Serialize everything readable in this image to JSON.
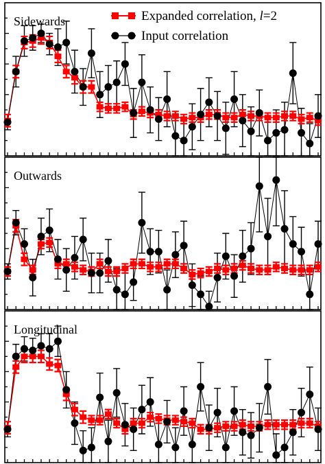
{
  "legend": {
    "expanded_label": "Expanded correlation, ",
    "expanded_l": "l",
    "expanded_eq": "=2",
    "input_label": "Input correlation"
  },
  "colors": {
    "expanded": "#ff0000",
    "input": "#000000"
  },
  "chart_data": [
    {
      "type": "line",
      "title": "Sidewards",
      "x": [
        1,
        2,
        3,
        4,
        5,
        6,
        7,
        8,
        9,
        10,
        11,
        12,
        13,
        14,
        15,
        16,
        17,
        18,
        19,
        20,
        21,
        22,
        23,
        24,
        25,
        26,
        27,
        28,
        29,
        30,
        31,
        32,
        33,
        34,
        35,
        36,
        37,
        38
      ],
      "ylim": [
        0,
        1
      ],
      "series": [
        {
          "name": "Expanded correlation, l=2",
          "values": [
            0.23,
            0.55,
            0.74,
            0.75,
            0.77,
            0.74,
            0.65,
            0.55,
            0.51,
            0.45,
            0.45,
            0.32,
            0.31,
            0.31,
            0.32,
            0.27,
            0.29,
            0.28,
            0.27,
            0.26,
            0.26,
            0.24,
            0.25,
            0.25,
            0.27,
            0.27,
            0.25,
            0.25,
            0.27,
            0.26,
            0.26,
            0.25,
            0.25,
            0.26,
            0.26,
            0.24,
            0.25,
            0.23
          ],
          "errors": [
            0.04,
            0.04,
            0.04,
            0.04,
            0.04,
            0.04,
            0.04,
            0.04,
            0.04,
            0.04,
            0.04,
            0.03,
            0.03,
            0.03,
            0.03,
            0.03,
            0.03,
            0.03,
            0.03,
            0.03,
            0.03,
            0.03,
            0.03,
            0.03,
            0.03,
            0.03,
            0.03,
            0.03,
            0.03,
            0.03,
            0.03,
            0.03,
            0.03,
            0.03,
            0.03,
            0.03,
            0.03,
            0.03
          ]
        },
        {
          "name": "Input correlation",
          "values": [
            0.22,
            0.55,
            0.75,
            0.77,
            0.8,
            0.73,
            0.71,
            0.74,
            0.55,
            0.45,
            0.67,
            0.4,
            0.45,
            0.48,
            0.6,
            0.28,
            0.48,
            0.3,
            0.24,
            0.37,
            0.13,
            0.1,
            0.19,
            0.27,
            0.35,
            0.26,
            0.18,
            0.37,
            0.23,
            0.16,
            0.28,
            0.1,
            0.15,
            0.17,
            0.54,
            0.15,
            0.08,
            0.26
          ],
          "errors": [
            0.05,
            0.1,
            0.1,
            0.08,
            0.06,
            0.07,
            0.12,
            0.14,
            0.14,
            0.12,
            0.16,
            0.15,
            0.14,
            0.14,
            0.14,
            0.16,
            0.18,
            0.15,
            0.14,
            0.18,
            0.14,
            0.13,
            0.15,
            0.17,
            0.16,
            0.16,
            0.17,
            0.18,
            0.17,
            0.16,
            0.15,
            0.16,
            0.15,
            0.18,
            0.2,
            0.16,
            0.13,
            0.14
          ]
        }
      ]
    },
    {
      "type": "line",
      "title": "Outwards",
      "x": [
        1,
        2,
        3,
        4,
        5,
        6,
        7,
        8,
        9,
        10,
        11,
        12,
        13,
        14,
        15,
        16,
        17,
        18,
        19,
        20,
        21,
        22,
        23,
        24,
        25,
        26,
        27,
        28,
        29,
        30,
        31,
        32,
        33,
        34,
        35,
        36,
        37,
        38
      ],
      "ylim": [
        0,
        1
      ],
      "series": [
        {
          "name": "Expanded correlation, l=2",
          "values": [
            0.25,
            0.55,
            0.33,
            0.26,
            0.43,
            0.44,
            0.3,
            0.3,
            0.28,
            0.26,
            0.25,
            0.3,
            0.25,
            0.25,
            0.27,
            0.3,
            0.3,
            0.28,
            0.28,
            0.3,
            0.3,
            0.27,
            0.23,
            0.24,
            0.25,
            0.27,
            0.26,
            0.27,
            0.29,
            0.27,
            0.26,
            0.26,
            0.28,
            0.27,
            0.26,
            0.26,
            0.26,
            0.28
          ],
          "errors": [
            0.03,
            0.04,
            0.04,
            0.03,
            0.03,
            0.03,
            0.03,
            0.03,
            0.03,
            0.03,
            0.03,
            0.03,
            0.03,
            0.03,
            0.03,
            0.03,
            0.03,
            0.03,
            0.03,
            0.03,
            0.03,
            0.03,
            0.03,
            0.03,
            0.03,
            0.03,
            0.03,
            0.03,
            0.03,
            0.03,
            0.03,
            0.03,
            0.03,
            0.03,
            0.03,
            0.03,
            0.03,
            0.03
          ]
        },
        {
          "name": "Input correlation",
          "values": [
            0.25,
            0.57,
            0.43,
            0.21,
            0.48,
            0.52,
            0.33,
            0.26,
            0.34,
            0.46,
            0.24,
            0.24,
            0.32,
            0.13,
            0.1,
            0.18,
            0.57,
            0.38,
            0.38,
            0.13,
            0.36,
            0.42,
            0.16,
            0.1,
            0.02,
            0.21,
            0.35,
            0.22,
            0.35,
            0.4,
            0.81,
            0.48,
            0.85,
            0.53,
            0.43,
            0.38,
            0.1,
            0.43
          ],
          "errors": [
            0.05,
            0.08,
            0.1,
            0.12,
            0.12,
            0.14,
            0.13,
            0.14,
            0.14,
            0.14,
            0.13,
            0.13,
            0.14,
            0.14,
            0.14,
            0.12,
            0.2,
            0.15,
            0.14,
            0.13,
            0.15,
            0.16,
            0.14,
            0.12,
            0.1,
            0.16,
            0.15,
            0.14,
            0.17,
            0.17,
            0.3,
            0.25,
            0.3,
            0.25,
            0.18,
            0.16,
            0.13,
            0.15
          ]
        }
      ]
    },
    {
      "type": "line",
      "title": "Longitudinal",
      "x": [
        1,
        2,
        3,
        4,
        5,
        6,
        7,
        8,
        9,
        10,
        11,
        12,
        13,
        14,
        15,
        16,
        17,
        18,
        19,
        20,
        21,
        22,
        23,
        24,
        25,
        26,
        27,
        28,
        29,
        30,
        31,
        32,
        33,
        34,
        35,
        36,
        37,
        38
      ],
      "ylim": [
        0,
        1
      ],
      "series": [
        {
          "name": "Expanded correlation, l=2",
          "values": [
            0.23,
            0.63,
            0.7,
            0.7,
            0.7,
            0.65,
            0.64,
            0.45,
            0.35,
            0.3,
            0.28,
            0.28,
            0.32,
            0.26,
            0.22,
            0.26,
            0.26,
            0.3,
            0.29,
            0.28,
            0.28,
            0.27,
            0.26,
            0.22,
            0.22,
            0.23,
            0.24,
            0.24,
            0.25,
            0.24,
            0.24,
            0.25,
            0.25,
            0.25,
            0.25,
            0.26,
            0.26,
            0.24
          ],
          "errors": [
            0.04,
            0.04,
            0.04,
            0.04,
            0.04,
            0.04,
            0.04,
            0.04,
            0.04,
            0.04,
            0.03,
            0.03,
            0.03,
            0.03,
            0.03,
            0.03,
            0.03,
            0.03,
            0.03,
            0.03,
            0.03,
            0.03,
            0.03,
            0.03,
            0.03,
            0.03,
            0.03,
            0.03,
            0.03,
            0.03,
            0.03,
            0.03,
            0.03,
            0.03,
            0.03,
            0.03,
            0.03,
            0.03
          ]
        },
        {
          "name": "Input correlation",
          "values": [
            0.22,
            0.7,
            0.75,
            0.74,
            0.77,
            0.75,
            0.8,
            0.48,
            0.26,
            0.08,
            0.1,
            0.43,
            0.14,
            0.46,
            0.25,
            0.22,
            0.35,
            0.4,
            0.12,
            0.27,
            0.1,
            0.34,
            0.12,
            0.5,
            0.23,
            0.33,
            0.1,
            0.34,
            0.2,
            0.18,
            0.23,
            0.5,
            0.05,
            0.1,
            0.2,
            0.33,
            0.45,
            0.22
          ],
          "errors": [
            0.05,
            0.08,
            0.08,
            0.08,
            0.08,
            0.1,
            0.1,
            0.12,
            0.14,
            0.13,
            0.13,
            0.16,
            0.14,
            0.16,
            0.14,
            0.14,
            0.16,
            0.16,
            0.14,
            0.14,
            0.13,
            0.16,
            0.14,
            0.16,
            0.15,
            0.16,
            0.14,
            0.16,
            0.15,
            0.15,
            0.16,
            0.18,
            0.14,
            0.14,
            0.15,
            0.16,
            0.18,
            0.14
          ]
        }
      ]
    }
  ]
}
